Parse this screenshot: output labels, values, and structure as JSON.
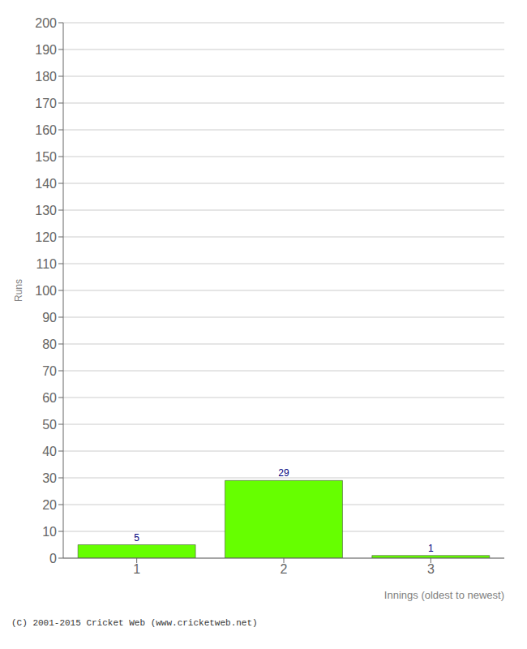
{
  "chart_data": {
    "type": "bar",
    "categories": [
      "1",
      "2",
      "3"
    ],
    "values": [
      5,
      29,
      1
    ],
    "color": "#66ff00",
    "xlabel": "Innings (oldest to newest)",
    "ylabel": "Runs",
    "ylim": [
      0,
      200
    ],
    "yticks": [
      0,
      10,
      20,
      30,
      40,
      50,
      60,
      70,
      80,
      90,
      100,
      110,
      120,
      130,
      140,
      150,
      160,
      170,
      180,
      190,
      200
    ],
    "grid": true,
    "data_labels": true,
    "annotations": [
      "(C) 2001-2015 Cricket Web (www.cricketweb.net)"
    ]
  }
}
